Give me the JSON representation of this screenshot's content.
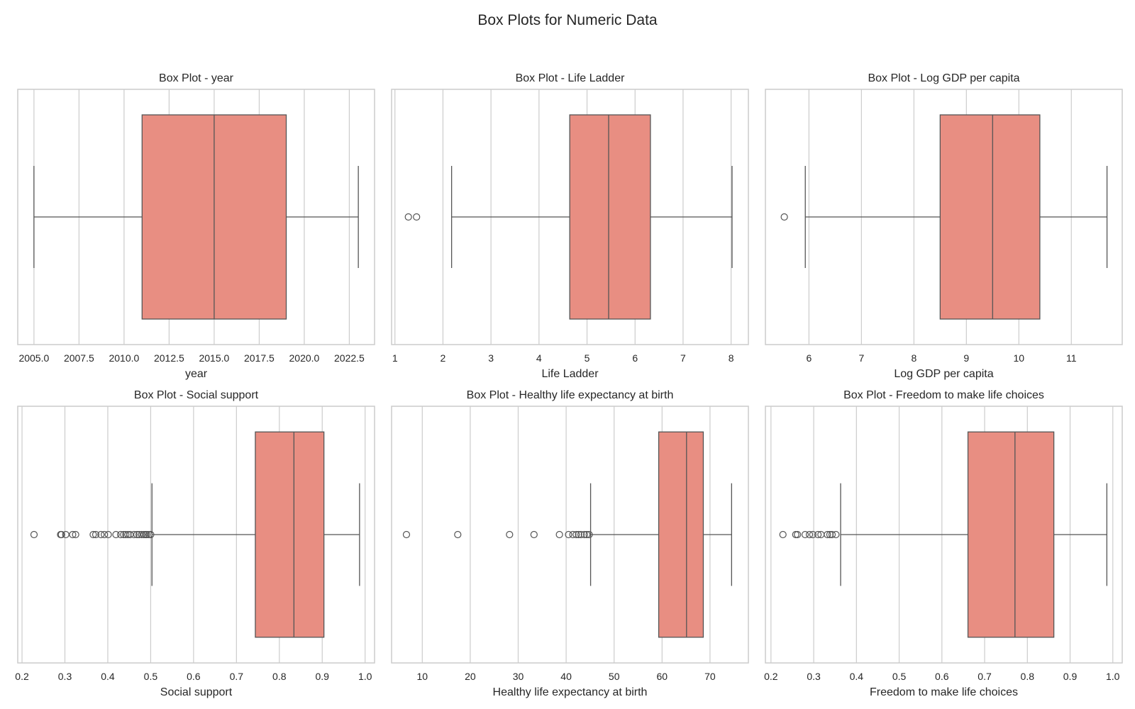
{
  "figure": {
    "title": "Box Plots for Numeric Data"
  },
  "colors": {
    "box_fill": "#e88e82",
    "line": "#555555",
    "grid": "#cccccc",
    "frame": "#cccccc",
    "background": "#ffffff"
  },
  "chart_data": [
    {
      "type": "box",
      "orientation": "horizontal",
      "title": "Box Plot - year",
      "xlabel": "year",
      "ylabel": "",
      "xlim": [
        2004.1,
        2023.9
      ],
      "ticks": [
        2005.0,
        2007.5,
        2010.0,
        2012.5,
        2015.0,
        2017.5,
        2020.0,
        2022.5
      ],
      "tick_labels": [
        "2005.0",
        "2007.5",
        "2010.0",
        "2012.5",
        "2015.0",
        "2017.5",
        "2020.0",
        "2022.5"
      ],
      "grid": true,
      "box": {
        "whisker_low": 2005,
        "q1": 2011,
        "median": 2015,
        "q3": 2019,
        "whisker_high": 2023
      },
      "outliers": []
    },
    {
      "type": "box",
      "orientation": "horizontal",
      "title": "Box Plot - Life Ladder",
      "xlabel": "Life Ladder",
      "ylabel": "",
      "xlim": [
        0.93,
        8.36
      ],
      "ticks": [
        1,
        2,
        3,
        4,
        5,
        6,
        7,
        8
      ],
      "tick_labels": [
        "1",
        "2",
        "3",
        "4",
        "5",
        "6",
        "7",
        "8"
      ],
      "grid": true,
      "box": {
        "whisker_low": 2.18,
        "q1": 4.64,
        "median": 5.45,
        "q3": 6.32,
        "whisker_high": 8.02
      },
      "outliers": [
        1.28,
        1.45
      ]
    },
    {
      "type": "box",
      "orientation": "horizontal",
      "title": "Box Plot - Log GDP per capita",
      "xlabel": "Log GDP per capita",
      "ylabel": "",
      "xlim": [
        5.17,
        11.97
      ],
      "ticks": [
        6,
        7,
        8,
        9,
        10,
        11
      ],
      "tick_labels": [
        "6",
        "7",
        "8",
        "9",
        "10",
        "11"
      ],
      "grid": true,
      "box": {
        "whisker_low": 5.93,
        "q1": 8.5,
        "median": 9.5,
        "q3": 10.4,
        "whisker_high": 11.68
      },
      "outliers": [
        5.53
      ]
    },
    {
      "type": "box",
      "orientation": "horizontal",
      "title": "Box Plot - Social support",
      "xlabel": "Social support",
      "ylabel": "",
      "xlim": [
        0.19,
        1.022
      ],
      "ticks": [
        0.2,
        0.3,
        0.4,
        0.5,
        0.6,
        0.7,
        0.8,
        0.9,
        1.0
      ],
      "tick_labels": [
        "0.2",
        "0.3",
        "0.4",
        "0.5",
        "0.6",
        "0.7",
        "0.8",
        "0.9",
        "1.0"
      ],
      "grid": true,
      "box": {
        "whisker_low": 0.503,
        "q1": 0.744,
        "median": 0.834,
        "q3": 0.904,
        "whisker_high": 0.987
      },
      "outliers": [
        0.228,
        0.29,
        0.292,
        0.302,
        0.318,
        0.325,
        0.366,
        0.372,
        0.384,
        0.392,
        0.401,
        0.419,
        0.43,
        0.437,
        0.442,
        0.447,
        0.452,
        0.461,
        0.468,
        0.473,
        0.479,
        0.484,
        0.488,
        0.491,
        0.496,
        0.5
      ]
    },
    {
      "type": "box",
      "orientation": "horizontal",
      "title": "Box Plot - Healthy life expectancy at birth",
      "xlabel": "Healthy life expectancy at birth",
      "ylabel": "",
      "xlim": [
        3.6,
        78.0
      ],
      "ticks": [
        10,
        20,
        30,
        40,
        50,
        60,
        70
      ],
      "tick_labels": [
        "10",
        "20",
        "30",
        "40",
        "50",
        "60",
        "70"
      ],
      "grid": true,
      "box": {
        "whisker_low": 45.1,
        "q1": 59.3,
        "median": 65.1,
        "q3": 68.6,
        "whisker_high": 74.5
      },
      "outliers": [
        6.7,
        17.4,
        28.2,
        33.3,
        38.6,
        40.5,
        41.4,
        42.1,
        42.6,
        43.1,
        43.8,
        44.3,
        44.8
      ]
    },
    {
      "type": "box",
      "orientation": "horizontal",
      "title": "Box Plot - Freedom to make life choices",
      "xlabel": "Freedom to make life choices",
      "ylabel": "",
      "xlim": [
        0.187,
        1.022
      ],
      "ticks": [
        0.2,
        0.3,
        0.4,
        0.5,
        0.6,
        0.7,
        0.8,
        0.9,
        1.0
      ],
      "tick_labels": [
        "0.2",
        "0.3",
        "0.4",
        "0.5",
        "0.6",
        "0.7",
        "0.8",
        "0.9",
        "1.0"
      ],
      "grid": true,
      "box": {
        "whisker_low": 0.363,
        "q1": 0.661,
        "median": 0.771,
        "q3": 0.862,
        "whisker_high": 0.986
      },
      "outliers": [
        0.228,
        0.258,
        0.262,
        0.28,
        0.29,
        0.298,
        0.31,
        0.317,
        0.332,
        0.338,
        0.343,
        0.352
      ]
    }
  ]
}
